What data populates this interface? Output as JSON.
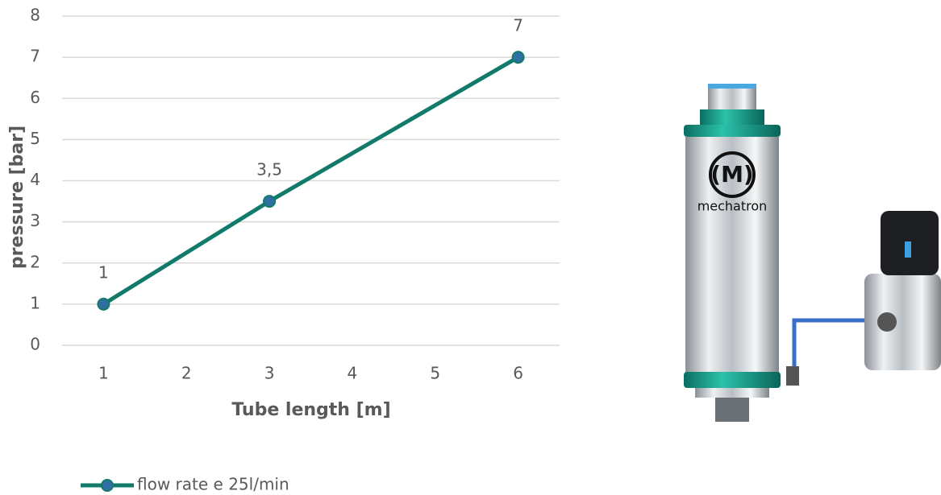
{
  "chart_data": {
    "type": "line",
    "x_label": "Tube length [m]",
    "y_label": "pressure [bar]",
    "x": [
      1,
      3,
      6
    ],
    "series": [
      {
        "name": "flow rate e 25l/min",
        "color": "#127a6a",
        "marker_color": "#2f6fa3",
        "values": [
          1,
          3.5,
          7
        ],
        "value_labels": [
          "1",
          "3,5",
          "7"
        ]
      }
    ],
    "xlim": [
      0.5,
      6.5
    ],
    "xticks": [
      1,
      2,
      3,
      4,
      5,
      6
    ],
    "ylim": [
      0,
      8
    ],
    "yticks": [
      0,
      1,
      2,
      3,
      4,
      5,
      6,
      7,
      8
    ],
    "grid": true,
    "legend": "bottom-left"
  },
  "product_labels": [
    "(M)",
    "mechatron"
  ]
}
